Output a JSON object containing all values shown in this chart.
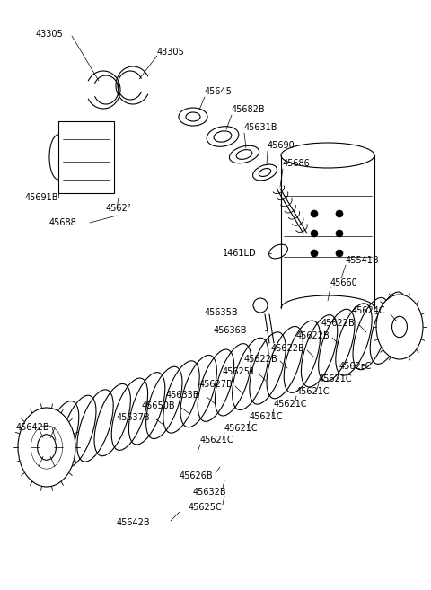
{
  "bg_color": "#ffffff",
  "line_color": "#000000",
  "text_color": "#000000",
  "fig_width": 4.8,
  "fig_height": 6.57,
  "dpi": 100,
  "xlim": [
    0,
    480
  ],
  "ylim": [
    0,
    657
  ]
}
